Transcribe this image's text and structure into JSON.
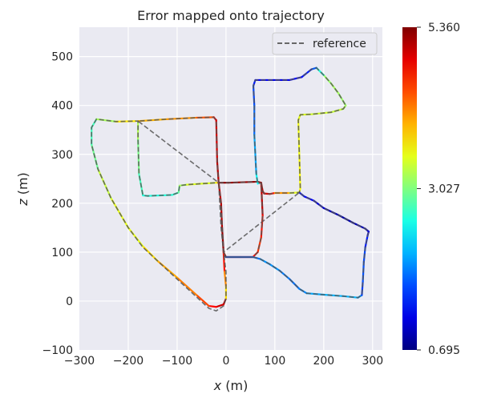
{
  "chart_data": {
    "type": "line",
    "title": "Error mapped onto trajectory",
    "xlabel": "x (m)",
    "ylabel": "z (m)",
    "xlabel_var": "x",
    "xlabel_unit": " (m)",
    "ylabel_var": "z",
    "ylabel_unit": " (m)",
    "xlim": [
      -300,
      320
    ],
    "ylim": [
      -100,
      560
    ],
    "xticks": [
      -300,
      -200,
      -100,
      0,
      100,
      200,
      300
    ],
    "yticks": [
      -100,
      0,
      100,
      200,
      300,
      400,
      500
    ],
    "grid": true,
    "legend": {
      "placement": "top-right",
      "entries": [
        {
          "label": "reference",
          "style": "dashed",
          "color": "#555555"
        }
      ]
    },
    "colorbar": {
      "colormap": "jet",
      "min": 0.695,
      "max": 5.36,
      "ticks": [
        0.695,
        3.027,
        5.36
      ],
      "tick_labels": [
        "0.695",
        "3.027",
        "5.360"
      ]
    },
    "series": [
      {
        "name": "reference",
        "style": "dashed",
        "points": [
          [
            0,
            5
          ],
          [
            -5,
            -10
          ],
          [
            -20,
            -20
          ],
          [
            -35,
            -15
          ],
          [
            -100,
            45
          ],
          [
            -170,
            110
          ],
          [
            -200,
            150
          ],
          [
            -235,
            210
          ],
          [
            -262,
            270
          ],
          [
            -275,
            320
          ],
          [
            -275,
            355
          ],
          [
            -265,
            372
          ],
          [
            -225,
            367
          ],
          [
            -185,
            368
          ],
          [
            -180,
            368
          ],
          [
            -180,
            330
          ],
          [
            -178,
            260
          ],
          [
            -170,
            216
          ],
          [
            -160,
            215
          ],
          [
            -110,
            217
          ],
          [
            -97,
            222
          ],
          [
            -95,
            236
          ],
          [
            -80,
            238
          ],
          [
            -20,
            242
          ],
          [
            -15,
            242
          ],
          [
            -18,
            285
          ],
          [
            -20,
            370
          ],
          [
            -25,
            376
          ],
          [
            -60,
            375
          ],
          [
            -120,
            372
          ],
          [
            -180,
            368
          ],
          [
            -15,
            242
          ],
          [
            5,
            242
          ],
          [
            65,
            244
          ],
          [
            72,
            242
          ],
          [
            75,
            225
          ],
          [
            78,
            220
          ],
          [
            90,
            219
          ],
          [
            100,
            221
          ],
          [
            130,
            221
          ],
          [
            150,
            222
          ],
          [
            152,
            230
          ],
          [
            150,
            300
          ],
          [
            148,
            370
          ],
          [
            152,
            381
          ],
          [
            175,
            382
          ],
          [
            215,
            386
          ],
          [
            240,
            393
          ],
          [
            245,
            400
          ],
          [
            230,
            425
          ],
          [
            215,
            445
          ],
          [
            200,
            462
          ],
          [
            185,
            477
          ],
          [
            175,
            474
          ],
          [
            155,
            458
          ],
          [
            130,
            452
          ],
          [
            90,
            452
          ],
          [
            60,
            452
          ],
          [
            56,
            440
          ],
          [
            58,
            400
          ],
          [
            58,
            340
          ],
          [
            62,
            260
          ],
          [
            65,
            240
          ],
          [
            72,
            242
          ],
          [
            75,
            175
          ],
          [
            72,
            130
          ],
          [
            65,
            100
          ],
          [
            55,
            90
          ],
          [
            30,
            90
          ],
          [
            0,
            90
          ],
          [
            -5,
            100
          ],
          [
            0,
            90
          ],
          [
            55,
            90
          ],
          [
            70,
            86
          ],
          [
            90,
            75
          ],
          [
            110,
            62
          ],
          [
            130,
            45
          ],
          [
            150,
            25
          ],
          [
            165,
            16
          ],
          [
            200,
            13
          ],
          [
            240,
            10
          ],
          [
            270,
            7
          ],
          [
            278,
            12
          ],
          [
            280,
            40
          ],
          [
            282,
            80
          ],
          [
            285,
            110
          ],
          [
            290,
            135
          ],
          [
            292,
            142
          ],
          [
            285,
            148
          ],
          [
            260,
            160
          ],
          [
            230,
            176
          ],
          [
            200,
            190
          ],
          [
            180,
            205
          ],
          [
            160,
            214
          ],
          [
            150,
            222
          ],
          [
            -5,
            100
          ],
          [
            -10,
            200
          ],
          [
            -15,
            242
          ],
          [
            -10,
            150
          ],
          [
            -5,
            100
          ],
          [
            0,
            60
          ],
          [
            0,
            20
          ],
          [
            0,
            5
          ]
        ]
      }
    ],
    "estimate": [
      {
        "points": [
          [
            0,
            5
          ],
          [
            -5,
            -7
          ],
          [
            -20,
            -12
          ],
          [
            -35,
            -10
          ],
          [
            -60,
            12
          ],
          [
            -100,
            48
          ],
          [
            -140,
            82
          ],
          [
            -170,
            112
          ]
        ],
        "error": [
          5.1,
          5.1,
          4.9,
          4.6,
          4.3,
          4.1,
          3.9,
          3.6
        ]
      },
      {
        "points": [
          [
            -170,
            112
          ],
          [
            -200,
            150
          ],
          [
            -235,
            210
          ],
          [
            -262,
            270
          ],
          [
            -275,
            320
          ],
          [
            -275,
            355
          ],
          [
            -265,
            372
          ],
          [
            -225,
            367
          ],
          [
            -185,
            368
          ]
        ],
        "error": [
          3.6,
          3.4,
          3.6,
          3.1,
          2.8,
          2.7,
          2.8,
          3.6,
          3.8
        ]
      },
      {
        "points": [
          [
            -180,
            368
          ],
          [
            -180,
            330
          ],
          [
            -178,
            260
          ],
          [
            -170,
            216
          ],
          [
            -160,
            215
          ],
          [
            -110,
            217
          ],
          [
            -97,
            222
          ],
          [
            -95,
            236
          ],
          [
            -80,
            238
          ],
          [
            -20,
            242
          ],
          [
            -15,
            242
          ]
        ],
        "error": [
          3.4,
          3.1,
          2.9,
          2.6,
          2.6,
          2.6,
          2.7,
          3.1,
          3.3,
          3.6,
          3.9
        ]
      },
      {
        "points": [
          [
            -180,
            368
          ],
          [
            -120,
            372
          ],
          [
            -60,
            375
          ],
          [
            -25,
            376
          ],
          [
            -20,
            370
          ],
          [
            -18,
            285
          ],
          [
            -15,
            242
          ]
        ],
        "error": [
          3.9,
          4.0,
          4.2,
          4.6,
          4.9,
          5.1,
          5.1
        ]
      },
      {
        "points": [
          [
            -15,
            242
          ],
          [
            5,
            242
          ],
          [
            65,
            244
          ],
          [
            72,
            242
          ],
          [
            75,
            225
          ],
          [
            78,
            220
          ],
          [
            90,
            219
          ],
          [
            100,
            221
          ],
          [
            130,
            221
          ],
          [
            150,
            222
          ]
        ],
        "error": [
          5.3,
          5.3,
          5.2,
          5.2,
          5.1,
          5.0,
          4.9,
          4.5,
          3.7,
          3.3
        ]
      },
      {
        "points": [
          [
            150,
            222
          ],
          [
            152,
            230
          ],
          [
            150,
            300
          ],
          [
            148,
            370
          ],
          [
            152,
            381
          ],
          [
            175,
            382
          ],
          [
            215,
            386
          ],
          [
            240,
            393
          ],
          [
            245,
            400
          ],
          [
            230,
            425
          ],
          [
            215,
            445
          ],
          [
            200,
            462
          ],
          [
            185,
            477
          ]
        ],
        "error": [
          3.5,
          3.6,
          3.6,
          3.5,
          3.5,
          3.4,
          3.4,
          3.3,
          3.2,
          3.1,
          3.3,
          3.0,
          2.2
        ]
      },
      {
        "points": [
          [
            185,
            477
          ],
          [
            175,
            474
          ],
          [
            155,
            458
          ],
          [
            130,
            452
          ],
          [
            90,
            452
          ],
          [
            60,
            452
          ],
          [
            56,
            440
          ],
          [
            58,
            400
          ],
          [
            58,
            340
          ],
          [
            62,
            260
          ],
          [
            65,
            240
          ]
        ],
        "error": [
          1.9,
          1.5,
          1.3,
          1.2,
          1.2,
          1.3,
          1.5,
          1.7,
          1.8,
          2.3,
          2.6
        ]
      },
      {
        "points": [
          [
            72,
            242
          ],
          [
            75,
            175
          ],
          [
            72,
            130
          ],
          [
            65,
            100
          ],
          [
            55,
            90
          ],
          [
            30,
            90
          ],
          [
            0,
            90
          ],
          [
            -5,
            100
          ]
        ],
        "error": [
          5.2,
          4.9,
          4.5,
          4.6,
          4.8,
          5.0,
          5.1,
          5.3
        ]
      },
      {
        "points": [
          [
            0,
            90
          ],
          [
            55,
            90
          ],
          [
            70,
            86
          ],
          [
            90,
            75
          ],
          [
            110,
            62
          ],
          [
            130,
            45
          ],
          [
            150,
            25
          ],
          [
            165,
            16
          ],
          [
            200,
            13
          ],
          [
            240,
            10
          ],
          [
            270,
            7
          ],
          [
            278,
            12
          ]
        ],
        "error": [
          1.6,
          1.7,
          1.9,
          2.0,
          1.9,
          1.8,
          1.8,
          2.0,
          2.1,
          2.1,
          2.1,
          1.9
        ]
      },
      {
        "points": [
          [
            278,
            12
          ],
          [
            280,
            40
          ],
          [
            282,
            80
          ],
          [
            285,
            110
          ],
          [
            290,
            135
          ],
          [
            292,
            142
          ],
          [
            285,
            148
          ],
          [
            260,
            160
          ],
          [
            230,
            176
          ],
          [
            200,
            190
          ],
          [
            180,
            205
          ],
          [
            160,
            214
          ],
          [
            150,
            222
          ]
        ],
        "error": [
          1.5,
          1.6,
          1.7,
          1.5,
          1.3,
          1.1,
          1.0,
          0.9,
          0.9,
          1.0,
          1.2,
          1.3,
          1.4
        ]
      },
      {
        "points": [
          [
            -5,
            100
          ],
          [
            -8,
            150
          ],
          [
            -10,
            200
          ],
          [
            -15,
            242
          ]
        ],
        "error": [
          5.3,
          5.2,
          5.0,
          5.1
        ]
      },
      {
        "points": [
          [
            -5,
            100
          ],
          [
            -3,
            60
          ],
          [
            0,
            30
          ],
          [
            0,
            5
          ]
        ],
        "error": [
          5.0,
          4.4,
          3.9,
          3.6
        ]
      }
    ]
  }
}
